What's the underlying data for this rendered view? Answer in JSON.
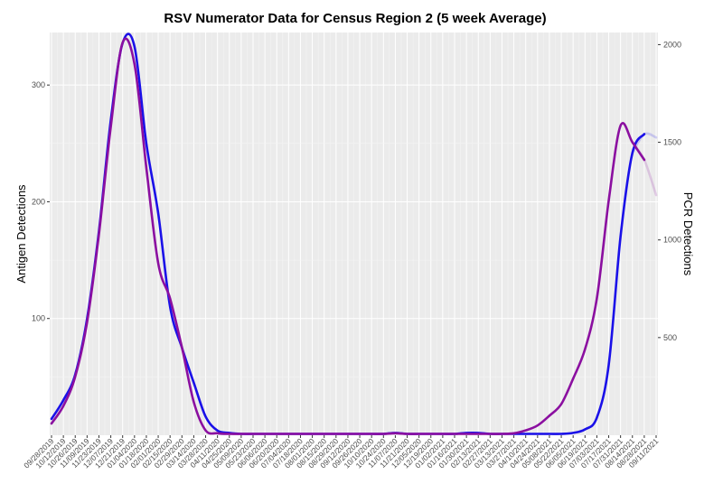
{
  "chart_data": {
    "type": "line",
    "title": "RSV Numerator Data for Census Region 2 (5 week Average)",
    "ylabel": "Antigen Detections",
    "y2label": "PCR Detections",
    "grid": true,
    "ylim": [
      0,
      345
    ],
    "y2lim": [
      0,
      2062
    ],
    "y_ticks": [
      100,
      200,
      300
    ],
    "y2_ticks": [
      500,
      1000,
      1500,
      2000
    ],
    "x_tick_labels": [
      "09/28/2019",
      "10/12/2019",
      "10/26/2019",
      "11/09/2019",
      "11/23/2019",
      "12/07/2019",
      "12/21/2019",
      "01/04/2020",
      "01/18/2020",
      "02/01/2020",
      "02/15/2020",
      "02/29/2020",
      "03/14/2020",
      "03/28/2020",
      "04/11/2020",
      "04/25/2020",
      "05/09/2020",
      "05/23/2020",
      "06/06/2020",
      "06/20/2020",
      "07/04/2020",
      "07/18/2020",
      "08/01/2020",
      "08/15/2020",
      "08/29/2020",
      "09/12/2020",
      "09/26/2020",
      "10/10/2020",
      "10/24/2020",
      "11/07/2020",
      "11/21/2020",
      "12/05/2020",
      "12/19/2020",
      "01/02/2021",
      "01/16/2021",
      "01/30/2021",
      "02/13/2021",
      "02/27/2021",
      "03/13/2021",
      "03/27/2021",
      "04/10/2021",
      "04/24/2021",
      "05/08/2021",
      "05/22/2021",
      "06/05/2021",
      "06/19/2021",
      "07/03/2021",
      "07/17/2021",
      "07/31/2021",
      "08/14/2021",
      "08/28/2021",
      "09/11/2021"
    ],
    "series": [
      {
        "axis": "left",
        "color": "#1a10e8",
        "x": [
          "09/28/2019",
          "10/12/2019",
          "10/26/2019",
          "11/09/2019",
          "11/23/2019",
          "12/07/2019",
          "12/21/2019",
          "01/04/2020",
          "01/18/2020",
          "02/01/2020",
          "02/15/2020",
          "02/29/2020",
          "03/14/2020",
          "03/28/2020",
          "04/11/2020",
          "04/25/2020",
          "05/09/2020",
          "05/23/2020",
          "06/06/2020",
          "06/20/2020",
          "07/04/2020",
          "07/18/2020",
          "08/01/2020",
          "08/15/2020",
          "08/29/2020",
          "09/12/2020",
          "09/26/2020",
          "10/10/2020",
          "10/24/2020",
          "11/07/2020",
          "11/21/2020",
          "12/05/2020",
          "12/19/2020",
          "01/02/2021",
          "01/16/2021",
          "01/30/2021",
          "02/13/2021",
          "02/27/2021",
          "03/13/2021",
          "03/27/2021",
          "04/10/2021",
          "04/24/2021",
          "05/08/2021",
          "05/22/2021",
          "06/05/2021",
          "06/19/2021",
          "07/03/2021",
          "07/17/2021",
          "07/31/2021",
          "08/14/2021",
          "08/28/2021",
          "09/11/2021"
        ],
        "values": [
          14,
          30,
          52,
          100,
          175,
          270,
          336,
          333,
          250,
          190,
          110,
          75,
          45,
          16,
          4,
          2,
          1,
          1,
          1,
          1,
          1,
          1,
          1,
          1,
          1,
          1,
          1,
          1,
          1,
          2,
          1,
          1,
          1,
          1,
          1,
          2,
          2,
          1,
          1,
          1,
          1,
          1,
          1,
          1,
          2,
          5,
          15,
          60,
          170,
          242,
          258,
          255
        ]
      },
      {
        "axis": "right",
        "color": "#8b0fa0",
        "x": [
          "09/28/2019",
          "10/12/2019",
          "10/26/2019",
          "11/09/2019",
          "11/23/2019",
          "12/07/2019",
          "12/21/2019",
          "01/04/2020",
          "01/18/2020",
          "02/01/2020",
          "02/15/2020",
          "02/29/2020",
          "03/14/2020",
          "03/28/2020",
          "04/11/2020",
          "04/25/2020",
          "05/09/2020",
          "05/23/2020",
          "06/06/2020",
          "06/20/2020",
          "07/04/2020",
          "07/18/2020",
          "08/01/2020",
          "08/15/2020",
          "08/29/2020",
          "09/12/2020",
          "09/26/2020",
          "10/10/2020",
          "10/24/2020",
          "11/07/2020",
          "11/21/2020",
          "12/05/2020",
          "12/19/2020",
          "01/02/2021",
          "01/16/2021",
          "01/30/2021",
          "02/13/2021",
          "02/27/2021",
          "03/13/2021",
          "03/27/2021",
          "04/10/2021",
          "04/24/2021",
          "05/08/2021",
          "05/22/2021",
          "06/05/2021",
          "06/19/2021",
          "07/03/2021",
          "07/17/2021",
          "07/31/2021",
          "08/14/2021",
          "08/28/2021",
          "09/11/2021"
        ],
        "values": [
          60,
          150,
          300,
          580,
          1030,
          1580,
          2010,
          1900,
          1370,
          880,
          700,
          450,
          170,
          25,
          10,
          5,
          5,
          5,
          5,
          5,
          5,
          5,
          5,
          5,
          5,
          5,
          5,
          5,
          5,
          10,
          5,
          5,
          5,
          5,
          5,
          5,
          5,
          5,
          5,
          10,
          25,
          50,
          100,
          160,
          290,
          440,
          700,
          1200,
          1585,
          1500,
          1410,
          1230
        ]
      }
    ]
  }
}
